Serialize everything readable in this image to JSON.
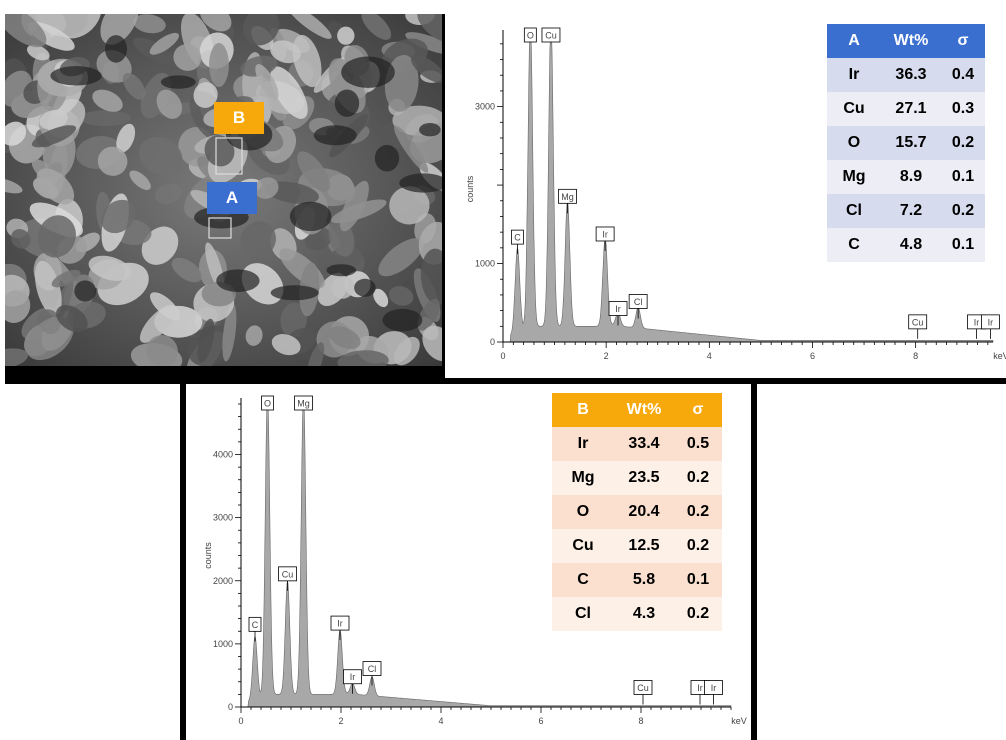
{
  "sem_image": {
    "markers": [
      {
        "label": "B",
        "color": "#f7a90b"
      },
      {
        "label": "A",
        "color": "#3a6fd0"
      }
    ]
  },
  "colors": {
    "accent_a": "#3a6fd0",
    "accent_b": "#f7a90b",
    "spectrum_fill": "#a8a8a8"
  },
  "chart_data": [
    {
      "id": "A",
      "type": "area",
      "title": "",
      "xlabel": "keV",
      "ylabel": "counts",
      "xlim": [
        0,
        9.5
      ],
      "ylim": [
        0,
        3900
      ],
      "x_ticks": [
        0,
        2,
        4,
        6,
        8
      ],
      "y_ticks": [
        1000,
        3000
      ],
      "peaks": [
        {
          "element": "C",
          "x": 0.28,
          "y": 1080
        },
        {
          "element": "O",
          "x": 0.53,
          "y": 3900
        },
        {
          "element": "Cu",
          "x": 0.93,
          "y": 3900
        },
        {
          "element": "Mg",
          "x": 1.25,
          "y": 1600
        },
        {
          "element": "Ir",
          "x": 1.98,
          "y": 1120
        },
        {
          "element": "Ir",
          "x": 2.23,
          "y": 170
        },
        {
          "element": "Cl",
          "x": 2.62,
          "y": 260
        },
        {
          "element": "Cu",
          "x": 8.04,
          "y": 0
        },
        {
          "element": "Ir",
          "x": 9.18,
          "y": 0
        },
        {
          "element": "Ir",
          "x": 9.45,
          "y": 0
        }
      ],
      "table": {
        "headers": [
          "A",
          "Wt%",
          "σ"
        ],
        "rows": [
          [
            "Ir",
            "36.3",
            "0.4"
          ],
          [
            "Cu",
            "27.1",
            "0.3"
          ],
          [
            "O",
            "15.7",
            "0.2"
          ],
          [
            "Mg",
            "8.9",
            "0.1"
          ],
          [
            "Cl",
            "7.2",
            "0.2"
          ],
          [
            "C",
            "4.8",
            "0.1"
          ]
        ]
      }
    },
    {
      "id": "B",
      "type": "area",
      "title": "",
      "xlabel": "keV",
      "ylabel": "counts",
      "xlim": [
        0,
        9.8
      ],
      "ylim": [
        0,
        4800
      ],
      "x_ticks": [
        0,
        2,
        4,
        6,
        8
      ],
      "y_ticks": [
        1000,
        2000,
        3000,
        4000
      ],
      "peaks": [
        {
          "element": "C",
          "x": 0.28,
          "y": 1000
        },
        {
          "element": "O",
          "x": 0.53,
          "y": 4800
        },
        {
          "element": "Cu",
          "x": 0.93,
          "y": 1800
        },
        {
          "element": "Mg",
          "x": 1.25,
          "y": 4800
        },
        {
          "element": "Ir",
          "x": 1.98,
          "y": 1020
        },
        {
          "element": "Ir",
          "x": 2.23,
          "y": 170
        },
        {
          "element": "Cl",
          "x": 2.62,
          "y": 300
        },
        {
          "element": "Cu",
          "x": 8.04,
          "y": 0
        },
        {
          "element": "Ir",
          "x": 9.18,
          "y": 0
        },
        {
          "element": "Ir",
          "x": 9.45,
          "y": 0
        }
      ],
      "table": {
        "headers": [
          "B",
          "Wt%",
          "σ"
        ],
        "rows": [
          [
            "Ir",
            "33.4",
            "0.5"
          ],
          [
            "Mg",
            "23.5",
            "0.2"
          ],
          [
            "O",
            "20.4",
            "0.2"
          ],
          [
            "Cu",
            "12.5",
            "0.2"
          ],
          [
            "C",
            "5.8",
            "0.1"
          ],
          [
            "Cl",
            "4.3",
            "0.2"
          ]
        ]
      }
    }
  ]
}
